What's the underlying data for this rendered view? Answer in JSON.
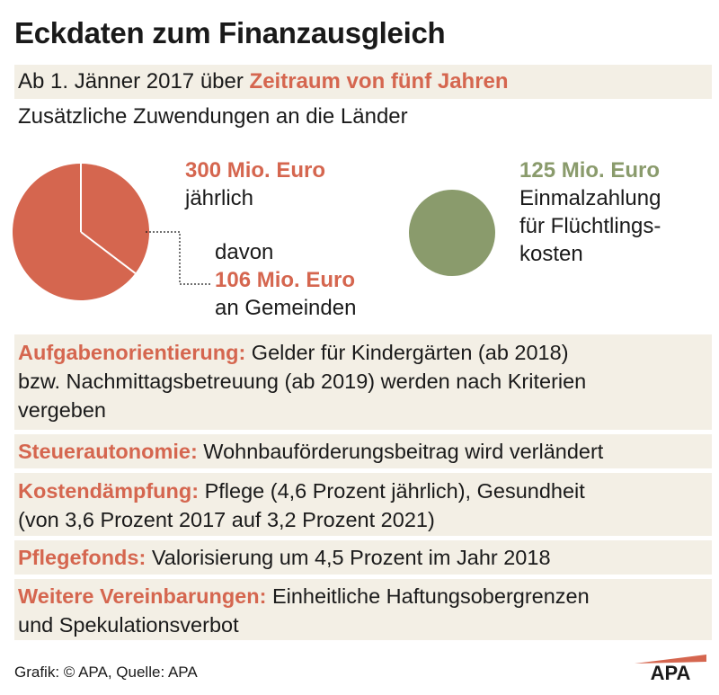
{
  "title": "Eckdaten zum Finanzausgleich",
  "period": {
    "prefix": "Ab 1. Jänner 2017 über ",
    "highlight": "Zeitraum von fünf Jahren"
  },
  "subtitle": "Zusätzliche Zuwendungen an die Länder",
  "pie": {
    "amount": "300 Mio. Euro",
    "frequency": "jährlich",
    "davon": "davon",
    "gemeinden_amount": "106 Mio. Euro",
    "gemeinden_label": "an Gemeinden",
    "total": 300,
    "slice_value": 106,
    "color": "#d5664f"
  },
  "refugee": {
    "amount": "125 Mio. Euro",
    "line1": "Einmalzahlung",
    "line2": "für Flüchtlings-",
    "line3": "kosten",
    "color": "#8a9b6c"
  },
  "items": [
    {
      "key": "Aufgabenorientierung:",
      "line1": " Gelder für Kindergärten (ab 2018)",
      "line2": "bzw. Nachmittagsbetreuung (ab 2019) werden nach Kriterien",
      "line3": "vergeben"
    },
    {
      "key": "Steuerautonomie:",
      "line1": " Wohnbauförderungsbeitrag wird verländert"
    },
    {
      "key": "Kostendämpfung:",
      "line1": " Pflege (4,6 Prozent jährlich), Gesundheit",
      "line2": "(von 3,6 Prozent 2017 auf 3,2 Prozent 2021)"
    },
    {
      "key": "Pflegefonds:",
      "line1": " Valorisierung um 4,5 Prozent im Jahr 2018"
    },
    {
      "key": "Weitere Vereinbarungen:",
      "line1": " Einheitliche Haftungsobergrenzen",
      "line2": "und Spekulationsverbot"
    }
  ],
  "footer": "Grafik: © APA, Quelle: APA",
  "logo": "APA",
  "colors": {
    "accent": "#d5664f",
    "green": "#8a9b6c",
    "band": "#f3efe5"
  }
}
